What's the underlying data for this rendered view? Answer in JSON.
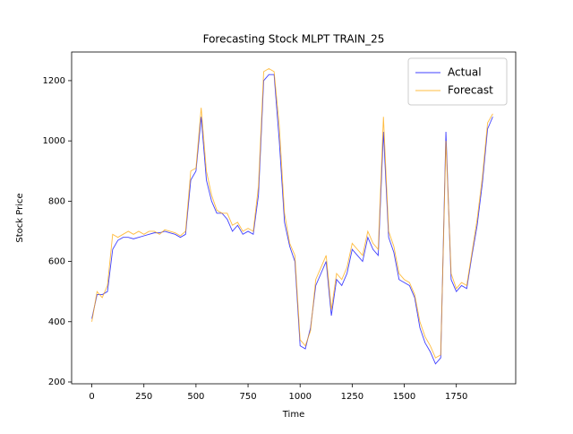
{
  "chart_data": {
    "type": "line",
    "title": "Forecasting Stock MLPT TRAIN_25",
    "xlabel": "Time",
    "ylabel": "Stock Price",
    "x": [
      0,
      25,
      50,
      75,
      100,
      125,
      150,
      175,
      200,
      225,
      250,
      275,
      300,
      325,
      350,
      375,
      400,
      425,
      450,
      475,
      500,
      525,
      550,
      575,
      600,
      625,
      650,
      675,
      700,
      725,
      750,
      775,
      800,
      825,
      850,
      875,
      900,
      925,
      950,
      975,
      1000,
      1025,
      1050,
      1075,
      1100,
      1125,
      1150,
      1175,
      1200,
      1225,
      1250,
      1275,
      1300,
      1325,
      1350,
      1375,
      1400,
      1425,
      1450,
      1475,
      1500,
      1525,
      1550,
      1575,
      1600,
      1625,
      1650,
      1675,
      1700,
      1725,
      1750,
      1775,
      1800,
      1825,
      1850,
      1875,
      1900,
      1925
    ],
    "series": [
      {
        "name": "Actual",
        "color": "#0000ff",
        "values": [
          410,
          490,
          490,
          500,
          640,
          670,
          680,
          680,
          675,
          680,
          685,
          690,
          695,
          695,
          700,
          695,
          690,
          680,
          690,
          870,
          900,
          1080,
          870,
          800,
          760,
          760,
          740,
          700,
          720,
          690,
          700,
          690,
          820,
          1200,
          1220,
          1220,
          1000,
          730,
          650,
          600,
          320,
          310,
          380,
          520,
          560,
          600,
          420,
          540,
          520,
          560,
          640,
          620,
          600,
          680,
          640,
          620,
          1030,
          680,
          630,
          540,
          530,
          520,
          480,
          380,
          330,
          300,
          260,
          280,
          1030,
          540,
          500,
          520,
          510,
          620,
          720,
          860,
          1040,
          1080
        ]
      },
      {
        "name": "Forecast",
        "color": "#ffa500",
        "values": [
          400,
          500,
          480,
          520,
          690,
          680,
          690,
          700,
          690,
          700,
          690,
          700,
          700,
          690,
          705,
          700,
          695,
          685,
          700,
          900,
          910,
          1110,
          900,
          820,
          770,
          760,
          760,
          720,
          730,
          700,
          710,
          700,
          850,
          1230,
          1240,
          1230,
          1050,
          760,
          660,
          620,
          340,
          320,
          370,
          540,
          580,
          620,
          440,
          560,
          540,
          580,
          660,
          640,
          620,
          700,
          660,
          640,
          1080,
          700,
          650,
          560,
          540,
          530,
          490,
          400,
          350,
          320,
          280,
          290,
          1000,
          560,
          510,
          530,
          520,
          630,
          740,
          880,
          1060,
          1090
        ]
      }
    ],
    "xlim": [
      -97,
      2035
    ],
    "ylim": [
      194,
      1295
    ],
    "xticks": [
      0,
      250,
      500,
      750,
      1000,
      1250,
      1500,
      1750
    ],
    "yticks": [
      200,
      400,
      600,
      800,
      1000,
      1200
    ],
    "legend": "upper right"
  }
}
